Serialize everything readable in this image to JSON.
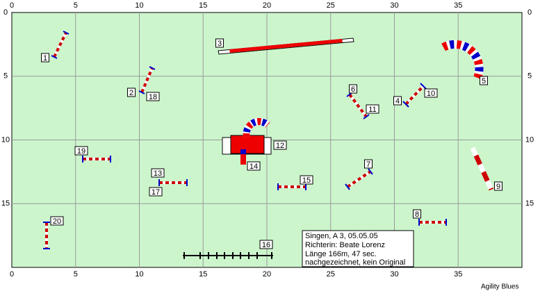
{
  "axes": {
    "x_labels": [
      0,
      5,
      10,
      15,
      20,
      25,
      30,
      35
    ],
    "y_labels": [
      0,
      5,
      10,
      15
    ]
  },
  "obstacle_labels": [
    "1",
    "2",
    "3",
    "4",
    "5",
    "6",
    "7",
    "8",
    "9",
    "10",
    "11",
    "12",
    "13",
    "14",
    "15",
    "16",
    "17",
    "18",
    "19",
    "20"
  ],
  "info_box": {
    "lines": [
      "Singen, A 3, 05.05.05",
      "Richterin: Beate  Lorenz",
      "Länge 166m, 47 sec.",
      "nachgezeichnet, kein Original"
    ]
  },
  "footer": "Agility Blues"
}
